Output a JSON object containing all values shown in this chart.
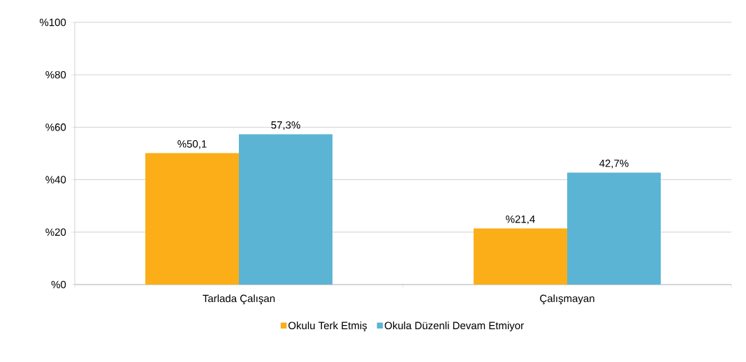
{
  "chart_data": {
    "type": "bar",
    "categories": [
      "Tarlada Çalışan",
      "Çalışmayan"
    ],
    "series": [
      {
        "name": "Okulu Terk Etmiş",
        "color": "#fbae17",
        "values": [
          50.1,
          21.4
        ],
        "value_labels": [
          "%50,1",
          "%21,4"
        ]
      },
      {
        "name": "Okula Düzenli Devam Etmiyor",
        "color": "#5bb4d4",
        "values": [
          57.3,
          42.7
        ],
        "value_labels": [
          "57,3%",
          "42,7%"
        ]
      }
    ],
    "ylim": [
      0,
      100
    ],
    "yticks": [
      {
        "value": 0,
        "label": "%0"
      },
      {
        "value": 20,
        "label": "%20"
      },
      {
        "value": 40,
        "label": "%40"
      },
      {
        "value": 60,
        "label": "%60"
      },
      {
        "value": 80,
        "label": "%80"
      },
      {
        "value": 100,
        "label": "%100"
      }
    ],
    "grid": "y",
    "legend": "bottom"
  }
}
